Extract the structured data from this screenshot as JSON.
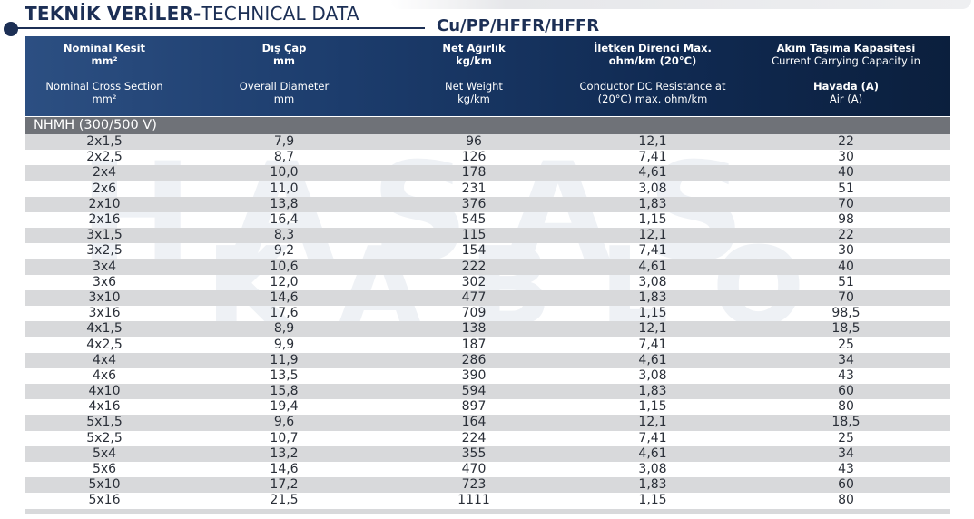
{
  "title": {
    "bold": "TEKNİK VERİLER-",
    "light": "TECHNICAL DATA",
    "subtitle": "Cu/PP/HFFR/HFFR"
  },
  "columns": [
    {
      "tr_title": "Nominal Kesit",
      "tr_unit": "mm²",
      "en_title": "Nominal Cross Section",
      "en_unit": "mm²"
    },
    {
      "tr_title": "Dış Çap",
      "tr_unit": "mm",
      "en_title": "Overall Diameter",
      "en_unit": "mm"
    },
    {
      "tr_title": "Net Ağırlık",
      "tr_unit": "kg/km",
      "en_title": "Net Weight",
      "en_unit": "kg/km"
    },
    {
      "tr_title": "İletken Direnci Max.",
      "tr_unit": "ohm/km (20°C)",
      "en_title": "Conductor DC Resistance at",
      "en_unit": "(20°C) max. ohm/km"
    },
    {
      "tr_title": "Akım Taşıma Kapasitesi",
      "tr_unit": "Current Carrying Capacity in",
      "en_title": "Havada (A)",
      "en_unit": "Air (A)"
    }
  ],
  "group_label": "NHMH (300/500 V)",
  "rows": [
    [
      "2x1,5",
      "7,9",
      "96",
      "12,1",
      "22"
    ],
    [
      "2x2,5",
      "8,7",
      "126",
      "7,41",
      "30"
    ],
    [
      "2x4",
      "10,0",
      "178",
      "4,61",
      "40"
    ],
    [
      "2x6",
      "11,0",
      "231",
      "3,08",
      "51"
    ],
    [
      "2x10",
      "13,8",
      "376",
      "1,83",
      "70"
    ],
    [
      "2x16",
      "16,4",
      "545",
      "1,15",
      "98"
    ],
    [
      "3x1,5",
      "8,3",
      "115",
      "12,1",
      "22"
    ],
    [
      "3x2,5",
      "9,2",
      "154",
      "7,41",
      "30"
    ],
    [
      "3x4",
      "10,6",
      "222",
      "4,61",
      "40"
    ],
    [
      "3x6",
      "12,0",
      "302",
      "3,08",
      "51"
    ],
    [
      "3x10",
      "14,6",
      "477",
      "1,83",
      "70"
    ],
    [
      "3x16",
      "17,6",
      "709",
      "1,15",
      "98,5"
    ],
    [
      "4x1,5",
      "8,9",
      "138",
      "12,1",
      "18,5"
    ],
    [
      "4x2,5",
      "9,9",
      "187",
      "7,41",
      "25"
    ],
    [
      "4x4",
      "11,9",
      "286",
      "4,61",
      "34"
    ],
    [
      "4x6",
      "13,5",
      "390",
      "3,08",
      "43"
    ],
    [
      "4x10",
      "15,8",
      "594",
      "1,83",
      "60"
    ],
    [
      "4x16",
      "19,4",
      "897",
      "1,15",
      "80"
    ],
    [
      "5x1,5",
      "9,6",
      "164",
      "12,1",
      "18,5"
    ],
    [
      "5x2,5",
      "10,7",
      "224",
      "7,41",
      "25"
    ],
    [
      "5x4",
      "13,2",
      "355",
      "4,61",
      "34"
    ],
    [
      "5x6",
      "14,6",
      "470",
      "3,08",
      "43"
    ],
    [
      "5x10",
      "17,2",
      "723",
      "1,83",
      "60"
    ],
    [
      "5x16",
      "21,5",
      "1111",
      "1,15",
      "80"
    ]
  ],
  "watermark": {
    "line1": "HASAS",
    "line2": "KABLO"
  }
}
